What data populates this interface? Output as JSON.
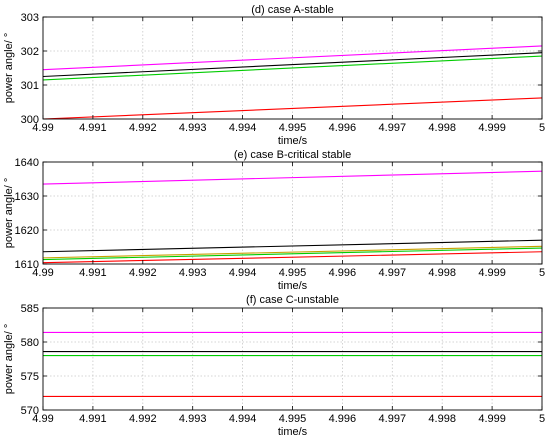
{
  "figure": {
    "panels": [
      {
        "title": "(d)  case A-stable"
      },
      {
        "title": "(e) case B-critical stable"
      },
      {
        "title": "(f) case C-unstable"
      }
    ]
  },
  "chart_data": [
    {
      "type": "line",
      "title": "(d)  case A-stable",
      "xlabel": "time/s",
      "ylabel": "power angle/ °",
      "xlim": [
        4.99,
        5
      ],
      "ylim": [
        300,
        303
      ],
      "xticks": [
        4.99,
        4.991,
        4.992,
        4.993,
        4.994,
        4.995,
        4.996,
        4.997,
        4.998,
        4.999,
        5
      ],
      "xtick_labels": [
        "4.99",
        "4.991",
        "4.992",
        "4.993",
        "4.994",
        "4.995",
        "4.996",
        "4.997",
        "4.998",
        "4.999",
        "5"
      ],
      "yticks": [
        300,
        301,
        302,
        303
      ],
      "ytick_labels": [
        "300",
        "301",
        "302",
        "303"
      ],
      "grid": true,
      "series": [
        {
          "color": "#ff00ff",
          "x": [
            4.99,
            5
          ],
          "y": [
            301.45,
            302.15
          ]
        },
        {
          "color": "#000000",
          "x": [
            4.99,
            5
          ],
          "y": [
            301.25,
            301.95
          ]
        },
        {
          "color": "#00cc00",
          "x": [
            4.99,
            5
          ],
          "y": [
            301.15,
            301.85
          ]
        },
        {
          "color": "#ff0000",
          "x": [
            4.99,
            5
          ],
          "y": [
            300.0,
            300.62
          ]
        }
      ]
    },
    {
      "type": "line",
      "title": "(e) case B-critical stable",
      "xlabel": "time/s",
      "ylabel": "power angle/ °",
      "xlim": [
        4.99,
        5
      ],
      "ylim": [
        1610,
        1640
      ],
      "xticks": [
        4.99,
        4.991,
        4.992,
        4.993,
        4.994,
        4.995,
        4.996,
        4.997,
        4.998,
        4.999,
        5
      ],
      "xtick_labels": [
        "4.99",
        "4.991",
        "4.992",
        "4.993",
        "4.994",
        "4.995",
        "4.996",
        "4.997",
        "4.998",
        "4.999",
        "5"
      ],
      "yticks": [
        1610,
        1620,
        1630,
        1640
      ],
      "ytick_labels": [
        "1610",
        "1620",
        "1630",
        "1640"
      ],
      "grid": true,
      "series": [
        {
          "color": "#ff00ff",
          "x": [
            4.99,
            5
          ],
          "y": [
            1633.5,
            1637.3
          ]
        },
        {
          "color": "#000000",
          "x": [
            4.99,
            5
          ],
          "y": [
            1613.6,
            1617.0
          ]
        },
        {
          "color": "#c8a000",
          "x": [
            4.99,
            5
          ],
          "y": [
            1611.8,
            1615.2
          ]
        },
        {
          "color": "#00cc00",
          "x": [
            4.99,
            5
          ],
          "y": [
            1611.3,
            1614.7
          ]
        },
        {
          "color": "#ff0000",
          "x": [
            4.99,
            5
          ],
          "y": [
            1610.4,
            1613.6
          ]
        }
      ]
    },
    {
      "type": "line",
      "title": "(f) case C-unstable",
      "xlabel": "time/s",
      "ylabel": "power angle/ °",
      "xlim": [
        4.99,
        5
      ],
      "ylim": [
        570,
        585
      ],
      "xticks": [
        4.99,
        4.991,
        4.992,
        4.993,
        4.994,
        4.995,
        4.996,
        4.997,
        4.998,
        4.999,
        5
      ],
      "xtick_labels": [
        "4.99",
        "4.991",
        "4.992",
        "4.993",
        "4.994",
        "4.995",
        "4.996",
        "4.997",
        "4.998",
        "4.999",
        "5"
      ],
      "yticks": [
        570,
        575,
        580,
        585
      ],
      "ytick_labels": [
        "570",
        "575",
        "580",
        "585"
      ],
      "grid": true,
      "series": [
        {
          "color": "#ff00ff",
          "x": [
            4.99,
            5
          ],
          "y": [
            581.4,
            581.4
          ]
        },
        {
          "color": "#000000",
          "x": [
            4.99,
            5
          ],
          "y": [
            578.6,
            578.6
          ]
        },
        {
          "color": "#00cc00",
          "x": [
            4.99,
            5
          ],
          "y": [
            578.0,
            578.0
          ]
        },
        {
          "color": "#ff0000",
          "x": [
            4.99,
            5
          ],
          "y": [
            572.0,
            572.0
          ]
        }
      ]
    }
  ]
}
